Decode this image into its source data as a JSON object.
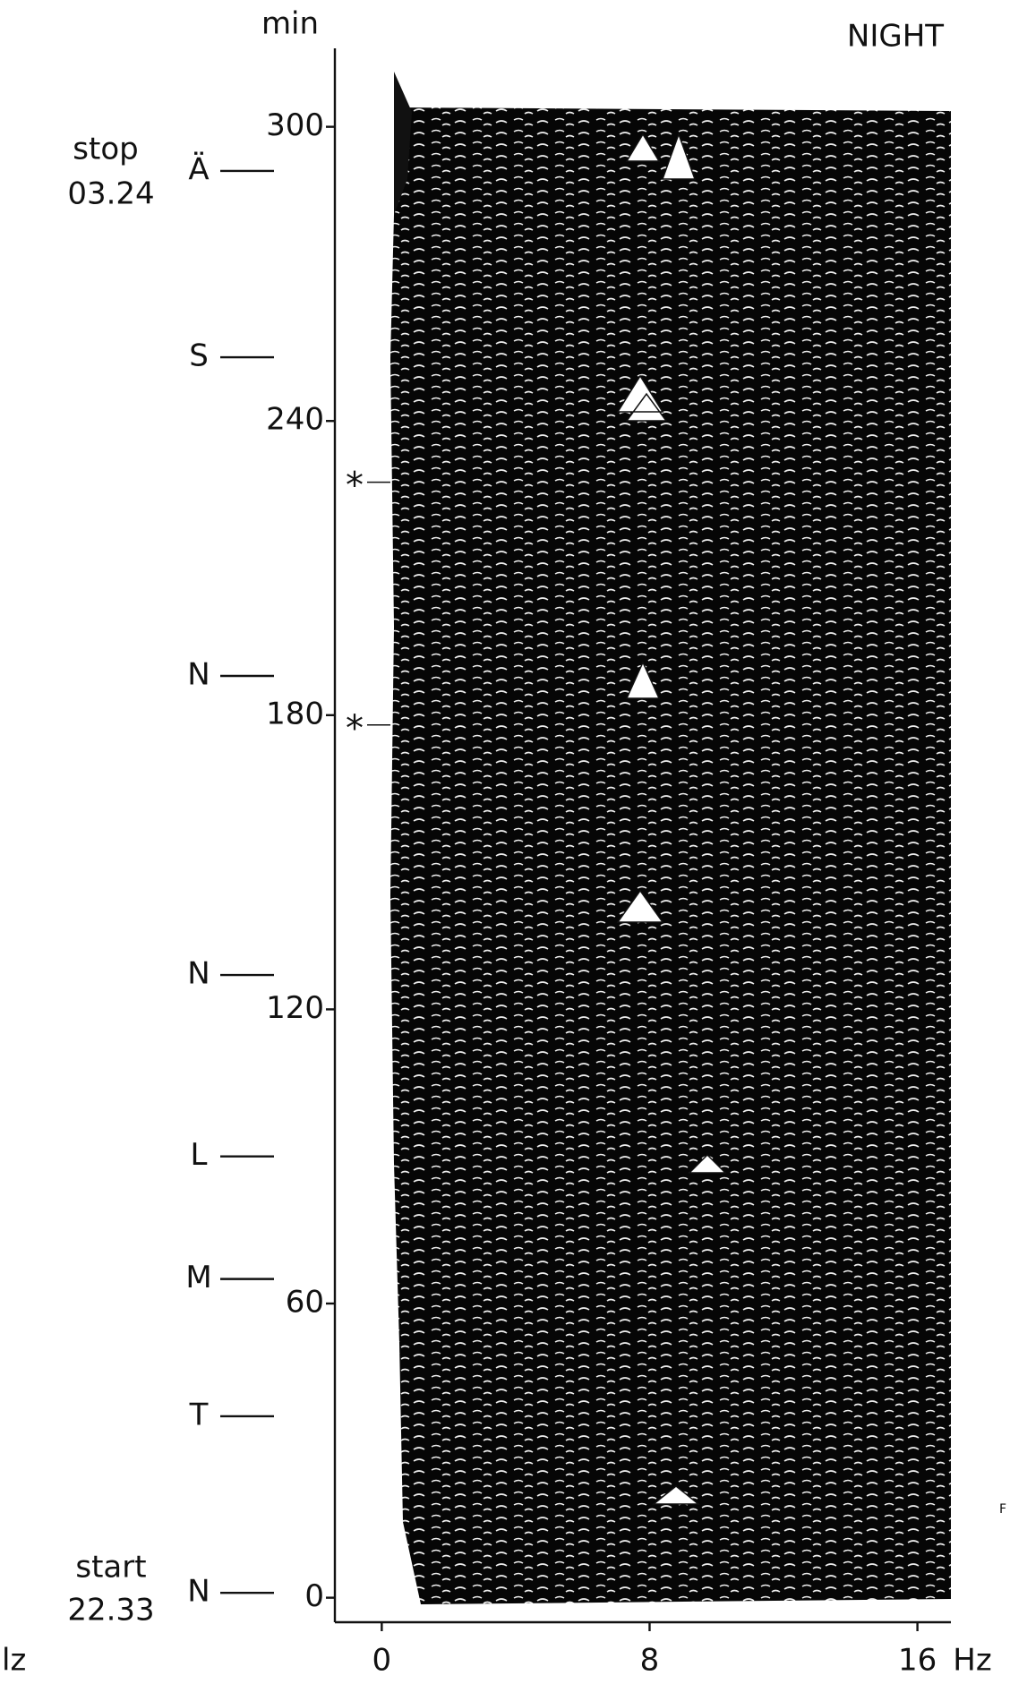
{
  "chart_data": {
    "type": "waterfall",
    "title": "NIGHT",
    "y_label": "min",
    "x_label": "Hz",
    "xlim": [
      -1.4,
      17
    ],
    "ylim": [
      -5,
      316
    ],
    "xticks": [
      0,
      8,
      16
    ],
    "yticks": [
      0,
      60,
      120,
      180,
      240,
      300
    ],
    "stop": {
      "label": "stop",
      "time": "03.24"
    },
    "start": {
      "label": "start",
      "time": "22.33"
    },
    "stages": [
      {
        "label": "Ä",
        "minute": 291
      },
      {
        "label": "S",
        "minute": 253
      },
      {
        "label": "N",
        "minute": 188
      },
      {
        "label": "N",
        "minute": 127
      },
      {
        "label": "L",
        "minute": 90
      },
      {
        "label": "M",
        "minute": 65
      },
      {
        "label": "T",
        "minute": 37
      },
      {
        "label": "N",
        "minute": 1
      }
    ],
    "markers": [
      {
        "label": "*",
        "minute": 227.5
      },
      {
        "label": "*",
        "minute": 178
      }
    ],
    "fragments": [
      "lz",
      "F"
    ]
  }
}
